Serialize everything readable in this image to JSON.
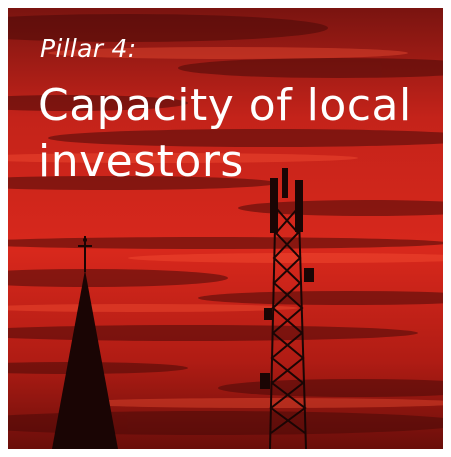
{
  "title_label": "Pillar 4:",
  "title": "Capacity of local investors"
}
